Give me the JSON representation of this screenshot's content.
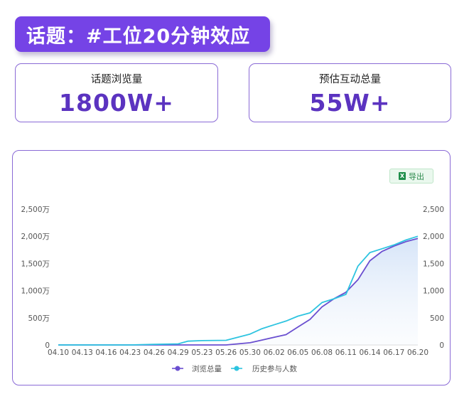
{
  "header": {
    "title": "话题：#工位20分钟效应"
  },
  "cards": [
    {
      "label": "话题浏览量",
      "value": "1800W+"
    },
    {
      "label": "预估互动总量",
      "value": "55W+"
    }
  ],
  "toolbar": {
    "export_label": "导出",
    "export_icon": "excel-icon"
  },
  "colors": {
    "accent": "#7543e6",
    "value_text": "#5b33c0",
    "series_views": "#6a4fd0",
    "series_participants": "#2ec4e0"
  },
  "chart_data": {
    "type": "line",
    "title": "",
    "xlabel": "",
    "ylabel": "",
    "x_tick_labels": [
      "04.10",
      "04.13",
      "04.16",
      "04.23",
      "04.26",
      "04.29",
      "05.23",
      "05.26",
      "05.30",
      "06.02",
      "06.05",
      "06.08",
      "06.11",
      "06.14",
      "06.17",
      "06.20"
    ],
    "left_axis": {
      "ylim": [
        0,
        2500
      ],
      "ticks": [
        0,
        500,
        1000,
        1500,
        2000,
        2500
      ],
      "tick_labels": [
        "0",
        "500万",
        "1,000万",
        "1,500万",
        "2,000万",
        "2,500万"
      ]
    },
    "right_axis": {
      "ylim": [
        0,
        2500
      ],
      "ticks": [
        0,
        500,
        1000,
        1500,
        2000,
        2500
      ],
      "tick_labels": [
        "0",
        "500",
        "1,000",
        "1,500",
        "2,000",
        "2,500"
      ]
    },
    "grid": false,
    "legend_position": "bottom-center",
    "series": [
      {
        "name": "浏览总量",
        "color": "#6a4fd0",
        "filled": true,
        "points": [
          [
            0,
            0
          ],
          [
            1,
            0
          ],
          [
            2,
            0
          ],
          [
            3,
            0
          ],
          [
            4,
            0
          ],
          [
            5,
            0
          ],
          [
            6,
            0
          ],
          [
            7,
            0
          ],
          [
            8,
            40
          ],
          [
            8.5,
            90
          ],
          [
            9,
            140
          ],
          [
            9.5,
            190
          ],
          [
            10,
            330
          ],
          [
            10.5,
            470
          ],
          [
            11,
            700
          ],
          [
            11.5,
            850
          ],
          [
            12,
            970
          ],
          [
            12.5,
            1200
          ],
          [
            13,
            1550
          ],
          [
            13.5,
            1720
          ],
          [
            14,
            1820
          ],
          [
            14.5,
            1900
          ],
          [
            15,
            1960
          ]
        ]
      },
      {
        "name": "历史参与人数",
        "color": "#2ec4e0",
        "filled": false,
        "points": [
          [
            0,
            0
          ],
          [
            1,
            0
          ],
          [
            2,
            0
          ],
          [
            3,
            0
          ],
          [
            4,
            10
          ],
          [
            5,
            20
          ],
          [
            5.4,
            70
          ],
          [
            6,
            80
          ],
          [
            7,
            85
          ],
          [
            8,
            200
          ],
          [
            8.5,
            300
          ],
          [
            9,
            370
          ],
          [
            9.5,
            440
          ],
          [
            10,
            530
          ],
          [
            10.5,
            590
          ],
          [
            11,
            780
          ],
          [
            11.5,
            850
          ],
          [
            12,
            930
          ],
          [
            12.5,
            1450
          ],
          [
            13,
            1700
          ],
          [
            13.5,
            1770
          ],
          [
            14,
            1840
          ],
          [
            14.5,
            1930
          ],
          [
            15,
            2000
          ]
        ]
      }
    ]
  }
}
